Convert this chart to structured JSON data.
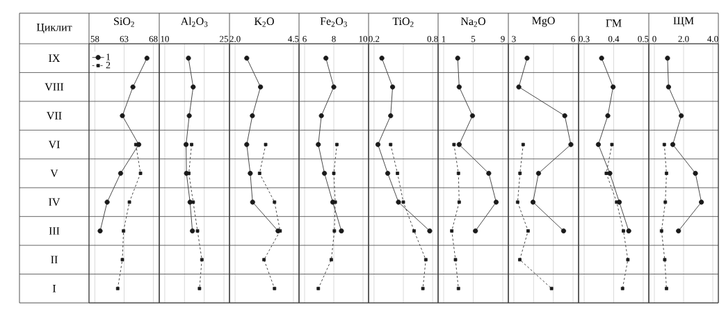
{
  "chart_data": [
    {
      "type": "line",
      "orientation": "horizontal",
      "title": "SiO$_{2}$",
      "ylabel": "Циклит",
      "categories": [
        "IX",
        "VIII",
        "VII",
        "VI",
        "V",
        "IV",
        "III",
        "II",
        "I"
      ],
      "xlim": [
        57,
        69
      ],
      "xticks": [
        58,
        63,
        68
      ],
      "grid": "x",
      "legend": "top left",
      "series": [
        {
          "name": "1",
          "color": "#1a1a1a",
          "marker": "circle",
          "line_style": "solid",
          "values": [
            66.9,
            64.5,
            62.7,
            65.5,
            62.4,
            60.1,
            58.9,
            null,
            null
          ]
        },
        {
          "name": "2",
          "color": "#1a1a1a",
          "marker": "square",
          "line_style": "dashed",
          "values": [
            null,
            null,
            null,
            65.0,
            65.8,
            63.9,
            62.9,
            62.7,
            61.9
          ]
        }
      ]
    },
    {
      "type": "line",
      "orientation": "horizontal",
      "title": "Al$_{2}$O$_{3}$",
      "xlim": [
        8.6,
        26.4
      ],
      "xticks": [
        10,
        {
          "value": 15,
          "label": null
        },
        {
          "value": 20,
          "label": null
        },
        25
      ],
      "grid": "x",
      "tick_labels": "x",
      "series": [
        {
          "color": "#1a1a1a",
          "marker": "circle",
          "line_style": "solid",
          "values": [
            16.0,
            17.2,
            16.2,
            15.4,
            15.5,
            16.4,
            17.0,
            null,
            null
          ]
        },
        {
          "color": "#1a1a1a",
          "marker": "square",
          "line_style": "dashed",
          "values": [
            null,
            null,
            null,
            16.8,
            16.1,
            17.2,
            18.3,
            19.4,
            18.8
          ]
        }
      ]
    },
    {
      "type": "line",
      "orientation": "horizontal",
      "title": "K$_{2}$O",
      "xlim": [
        1.76,
        4.74
      ],
      "xticks": [
        {
          "value": 2.0,
          "label": "2.0"
        },
        4.5
      ],
      "grid": "x",
      "tick_labels": "x",
      "series": [
        {
          "color": "#1a1a1a",
          "marker": "circle",
          "line_style": "solid",
          "values": [
            2.5,
            3.09,
            2.74,
            2.5,
            2.65,
            2.75,
            3.84,
            null,
            null
          ]
        },
        {
          "color": "#1a1a1a",
          "marker": "square",
          "line_style": "dashed",
          "values": [
            null,
            null,
            null,
            3.31,
            3.05,
            3.69,
            3.93,
            3.24,
            3.69
          ]
        }
      ]
    },
    {
      "type": "line",
      "orientation": "horizontal",
      "title": "Fe$_{2}$O$_{3}$",
      "xlim": [
        5.62,
        10.38
      ],
      "xticks": [
        6,
        8,
        10
      ],
      "grid": "x",
      "tick_labels": "x",
      "series": [
        {
          "color": "#1a1a1a",
          "marker": "circle",
          "line_style": "solid",
          "values": [
            7.46,
            8.0,
            7.15,
            6.94,
            7.36,
            7.93,
            8.52,
            null,
            null
          ]
        },
        {
          "color": "#1a1a1a",
          "marker": "square",
          "line_style": "dashed",
          "values": [
            null,
            null,
            null,
            8.21,
            8.0,
            8.1,
            8.04,
            7.83,
            6.94
          ]
        }
      ]
    },
    {
      "type": "line",
      "orientation": "horizontal",
      "title": "TiO$_{2}$",
      "xlim": [
        0.144,
        0.856
      ],
      "xticks": [
        0.2,
        {
          "value": 0.5,
          "label": null
        },
        0.8
      ],
      "grid": "x",
      "tick_labels": "x",
      "series": [
        {
          "color": "#1a1a1a",
          "marker": "circle",
          "line_style": "solid",
          "values": [
            0.28,
            0.39,
            0.37,
            0.24,
            0.34,
            0.45,
            0.77,
            null,
            null
          ]
        },
        {
          "color": "#1a1a1a",
          "marker": "square",
          "line_style": "dashed",
          "values": [
            null,
            null,
            null,
            0.37,
            0.44,
            0.5,
            0.61,
            0.73,
            0.7
          ]
        }
      ]
    },
    {
      "type": "line",
      "orientation": "horizontal",
      "title": "Na$_{2}$O",
      "xlim": [
        0.25,
        9.75
      ],
      "xticks": [
        1,
        5,
        9
      ],
      "grid": "x",
      "tick_labels": "x",
      "series": [
        {
          "color": "#1a1a1a",
          "marker": "circle",
          "line_style": "solid",
          "values": [
            2.9,
            3.1,
            4.9,
            3.1,
            7.1,
            8.1,
            5.3,
            null,
            null
          ]
        },
        {
          "color": "#1a1a1a",
          "marker": "square",
          "line_style": "dashed",
          "values": [
            null,
            null,
            null,
            2.4,
            3.0,
            3.1,
            2.1,
            2.6,
            3.0
          ]
        }
      ]
    },
    {
      "type": "line",
      "orientation": "horizontal",
      "title": "MgO",
      "xlim": [
        2.72,
        6.28
      ],
      "xticks": [
        3,
        {
          "value": 4,
          "label": null
        },
        {
          "value": 5,
          "label": null
        },
        6
      ],
      "grid": "x",
      "tick_labels": "x",
      "series": [
        {
          "color": "#1a1a1a",
          "marker": "circle",
          "line_style": "solid",
          "values": [
            3.67,
            3.25,
            5.58,
            5.89,
            4.25,
            3.97,
            5.52,
            null,
            null
          ]
        },
        {
          "color": "#1a1a1a",
          "marker": "square",
          "line_style": "dashed",
          "values": [
            null,
            null,
            null,
            3.47,
            3.31,
            3.19,
            3.72,
            3.3,
            4.91
          ]
        }
      ]
    },
    {
      "type": "line",
      "orientation": "horizontal",
      "title": "ГМ",
      "xlim": [
        0.281,
        0.519
      ],
      "xticks": [
        0.3,
        0.4,
        0.5
      ],
      "grid": "x",
      "tick_labels": "x",
      "series": [
        {
          "color": "#1a1a1a",
          "marker": "circle",
          "line_style": "solid",
          "values": [
            0.359,
            0.398,
            0.38,
            0.348,
            0.387,
            0.419,
            0.451,
            null,
            null
          ]
        },
        {
          "color": "#1a1a1a",
          "marker": "square",
          "line_style": "dashed",
          "values": [
            null,
            null,
            null,
            0.394,
            0.375,
            0.41,
            0.433,
            0.448,
            0.43
          ]
        }
      ]
    },
    {
      "type": "line",
      "orientation": "horizontal",
      "title": "ЩМ",
      "xlim": [
        -0.38,
        4.38
      ],
      "xticks": [
        0,
        {
          "value": 2,
          "label": "2.0"
        },
        {
          "value": 4,
          "label": "4.0"
        }
      ],
      "grid": "x",
      "tick_labels": "x",
      "series": [
        {
          "color": "#1a1a1a",
          "marker": "circle",
          "line_style": "solid",
          "values": [
            0.9,
            0.97,
            1.84,
            1.26,
            2.81,
            3.22,
            1.65,
            null,
            null
          ]
        },
        {
          "color": "#1a1a1a",
          "marker": "square",
          "line_style": "dashed",
          "values": [
            null,
            null,
            null,
            0.68,
            0.83,
            0.75,
            0.49,
            0.71,
            0.83
          ]
        }
      ]
    }
  ]
}
